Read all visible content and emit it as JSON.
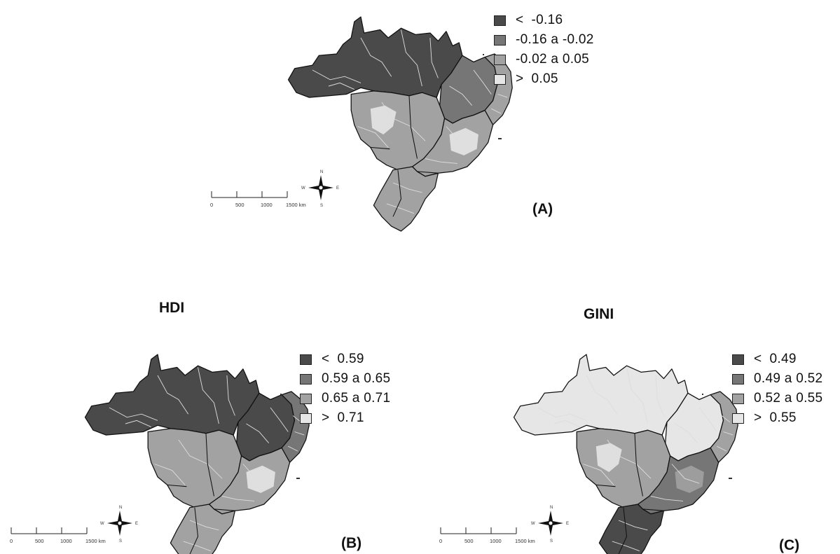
{
  "colors": {
    "class1": "#4a4a4a",
    "class2": "#767676",
    "class3": "#a2a2a2",
    "class4": "#e6e6e6",
    "border": "#111111",
    "inner_lines": "#dddddd"
  },
  "panels": [
    {
      "id": "A",
      "letter": "(A)",
      "title": "",
      "legend": [
        "<  -0.16",
        "-0.16 a -0.02",
        "-0.02 a 0.05",
        ">  0.05"
      ],
      "fill": {
        "north": 1,
        "northeast": 2,
        "northeast_coast": 3,
        "center_west": 3,
        "southeast": 3,
        "south": 3,
        "mato_grosso_patch": 4,
        "minas_patch": 4
      }
    },
    {
      "id": "B",
      "letter": "(B)",
      "title": "HDI",
      "legend": [
        "<  0.59",
        "0.59 a 0.65",
        "0.65 a 0.71",
        ">  0.71"
      ],
      "fill": {
        "north": 1,
        "northeast": 1,
        "northeast_coast": 2,
        "center_west": 3,
        "southeast": 3,
        "south": 3,
        "mato_grosso_patch": 3,
        "minas_patch": 4
      }
    },
    {
      "id": "C",
      "letter": "(C)",
      "title": "GINI",
      "legend": [
        "<  0.49",
        "0.49 a 0.52",
        "0.52 a 0.55",
        ">  0.55"
      ],
      "fill": {
        "north": 4,
        "northeast": 4,
        "northeast_coast": 3,
        "center_west": 3,
        "southeast": 2,
        "south": 1,
        "mato_grosso_patch": 4,
        "minas_patch": 3
      }
    }
  ],
  "scale_bar": {
    "ticks": [
      "0",
      "500",
      "1000",
      "1500 km"
    ]
  },
  "compass": {
    "n": "N",
    "s": "S",
    "e": "E",
    "w": "W"
  }
}
